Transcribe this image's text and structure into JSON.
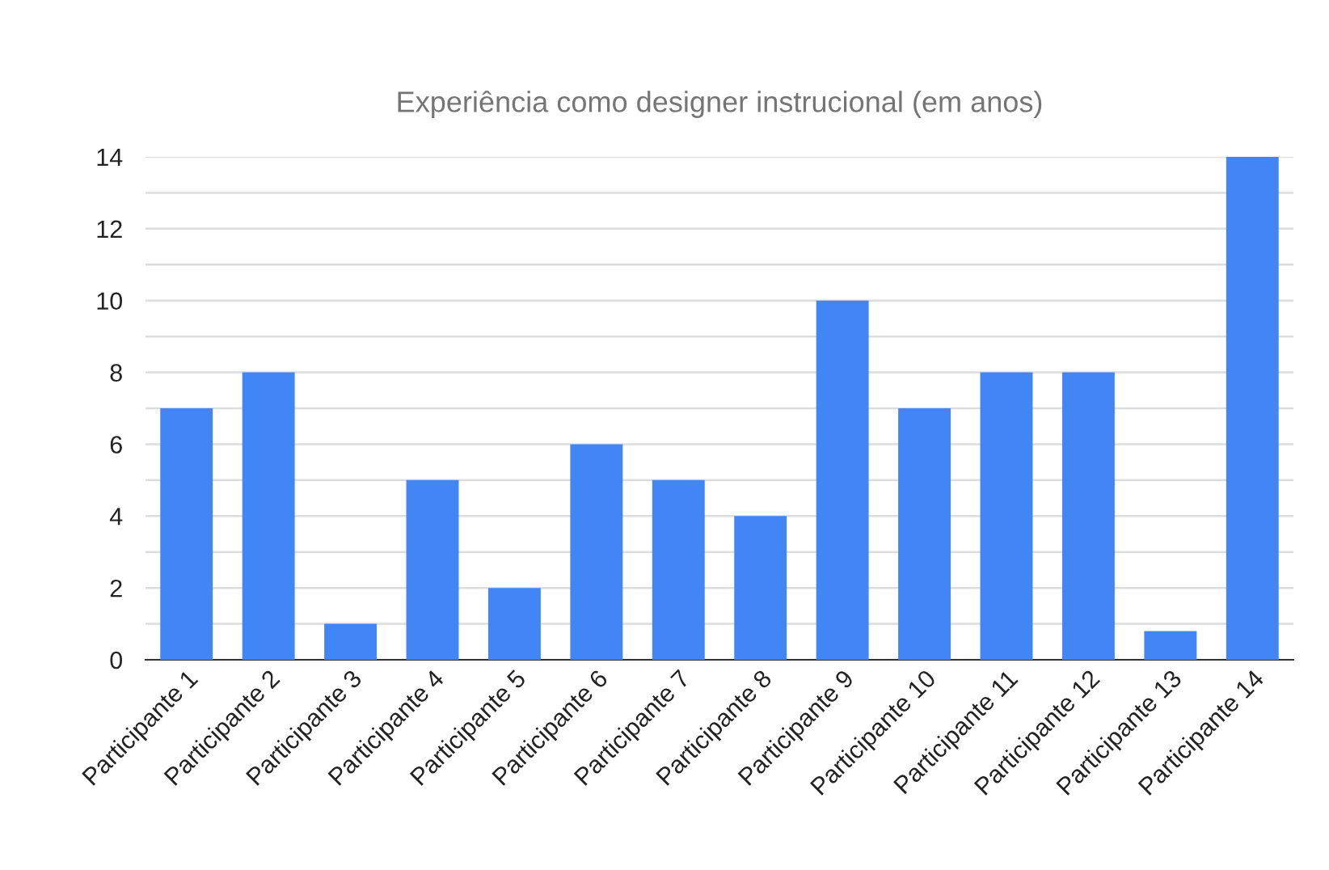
{
  "chart_data": {
    "type": "bar",
    "title": "Experiência como designer instrucional (em anos)",
    "categories": [
      "Participante 1",
      "Participante 2",
      "Participante 3",
      "Participante 4",
      "Participante 5",
      "Participante 6",
      "Participante 7",
      "Participante 8",
      "Participante 9",
      "Participante 10",
      "Participante 11",
      "Participante 12",
      "Participante 13",
      "Participante 14"
    ],
    "values": [
      7,
      8,
      1,
      5,
      2,
      6,
      5,
      4,
      10,
      7,
      8,
      8,
      0.8,
      14
    ],
    "color": "#4285f4",
    "ylim": [
      0,
      14
    ],
    "yticks": [
      0,
      {
        "value": 1,
        "label": null
      },
      2,
      {
        "value": 3,
        "label": null
      },
      4,
      {
        "value": 5,
        "label": null
      },
      6,
      {
        "value": 7,
        "label": null
      },
      8,
      {
        "value": 9,
        "label": null
      },
      10,
      {
        "value": 11,
        "label": null
      },
      12,
      {
        "value": 13,
        "label": null
      },
      14
    ],
    "grid": "y",
    "legend": false
  }
}
